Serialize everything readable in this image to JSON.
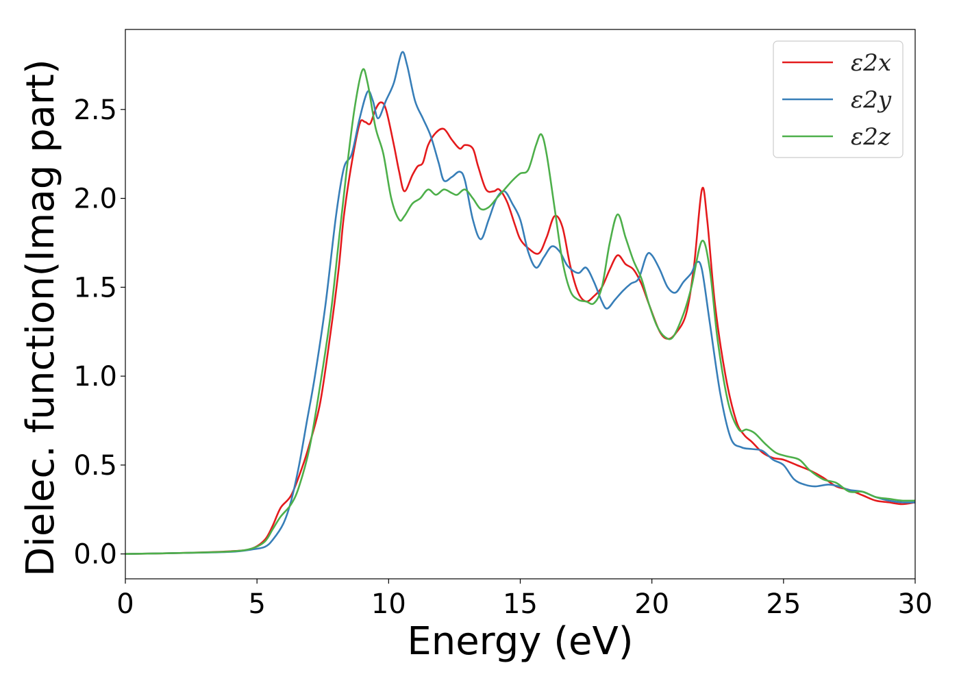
{
  "chart_data": {
    "type": "line",
    "title": "",
    "xlabel": "Energy (eV)",
    "ylabel": "Dielec. function(Imag part)",
    "xlim": [
      0,
      30
    ],
    "ylim": [
      -0.14,
      2.95
    ],
    "xticks": [
      0,
      5,
      10,
      15,
      20,
      25,
      30
    ],
    "yticks": [
      0.0,
      0.5,
      1.0,
      1.5,
      2.0,
      2.5
    ],
    "grid": false,
    "legend_position": "top-right",
    "series": [
      {
        "name": "ε2x",
        "color": "#e41a1c",
        "points": [
          [
            0,
            0
          ],
          [
            2,
            0.005
          ],
          [
            4,
            0.015
          ],
          [
            4.8,
            0.03
          ],
          [
            5.3,
            0.08
          ],
          [
            5.6,
            0.16
          ],
          [
            5.9,
            0.26
          ],
          [
            6.3,
            0.33
          ],
          [
            6.7,
            0.48
          ],
          [
            7.0,
            0.62
          ],
          [
            7.4,
            0.85
          ],
          [
            7.8,
            1.25
          ],
          [
            8.1,
            1.6
          ],
          [
            8.3,
            1.9
          ],
          [
            8.6,
            2.2
          ],
          [
            8.9,
            2.42
          ],
          [
            9.1,
            2.43
          ],
          [
            9.3,
            2.42
          ],
          [
            9.5,
            2.5
          ],
          [
            9.7,
            2.54
          ],
          [
            9.9,
            2.5
          ],
          [
            10.2,
            2.3
          ],
          [
            10.4,
            2.15
          ],
          [
            10.6,
            2.04
          ],
          [
            10.9,
            2.13
          ],
          [
            11.1,
            2.18
          ],
          [
            11.3,
            2.2
          ],
          [
            11.5,
            2.3
          ],
          [
            11.8,
            2.37
          ],
          [
            12.1,
            2.39
          ],
          [
            12.4,
            2.33
          ],
          [
            12.7,
            2.28
          ],
          [
            12.9,
            2.3
          ],
          [
            13.2,
            2.28
          ],
          [
            13.4,
            2.18
          ],
          [
            13.7,
            2.05
          ],
          [
            14.0,
            2.04
          ],
          [
            14.2,
            2.05
          ],
          [
            14.5,
            1.98
          ],
          [
            14.8,
            1.85
          ],
          [
            15.0,
            1.77
          ],
          [
            15.3,
            1.72
          ],
          [
            15.7,
            1.69
          ],
          [
            16.0,
            1.78
          ],
          [
            16.3,
            1.9
          ],
          [
            16.6,
            1.84
          ],
          [
            16.9,
            1.62
          ],
          [
            17.2,
            1.47
          ],
          [
            17.5,
            1.42
          ],
          [
            17.8,
            1.45
          ],
          [
            18.1,
            1.5
          ],
          [
            18.4,
            1.6
          ],
          [
            18.7,
            1.68
          ],
          [
            19.0,
            1.63
          ],
          [
            19.3,
            1.6
          ],
          [
            19.6,
            1.52
          ],
          [
            19.9,
            1.4
          ],
          [
            20.3,
            1.25
          ],
          [
            20.6,
            1.21
          ],
          [
            20.9,
            1.24
          ],
          [
            21.3,
            1.35
          ],
          [
            21.6,
            1.62
          ],
          [
            21.9,
            2.05
          ],
          [
            22.1,
            1.88
          ],
          [
            22.4,
            1.4
          ],
          [
            22.8,
            1.0
          ],
          [
            23.2,
            0.75
          ],
          [
            23.5,
            0.67
          ],
          [
            23.8,
            0.63
          ],
          [
            24.2,
            0.57
          ],
          [
            24.6,
            0.54
          ],
          [
            25.0,
            0.53
          ],
          [
            25.5,
            0.5
          ],
          [
            26.0,
            0.47
          ],
          [
            26.5,
            0.43
          ],
          [
            27.0,
            0.38
          ],
          [
            27.5,
            0.36
          ],
          [
            28.0,
            0.33
          ],
          [
            28.5,
            0.3
          ],
          [
            29.0,
            0.29
          ],
          [
            29.5,
            0.28
          ],
          [
            30,
            0.29
          ]
        ]
      },
      {
        "name": "ε2y",
        "color": "#377eb8",
        "points": [
          [
            0,
            0
          ],
          [
            2,
            0.005
          ],
          [
            4,
            0.012
          ],
          [
            4.8,
            0.025
          ],
          [
            5.3,
            0.04
          ],
          [
            5.6,
            0.08
          ],
          [
            6.0,
            0.17
          ],
          [
            6.3,
            0.3
          ],
          [
            6.6,
            0.5
          ],
          [
            6.9,
            0.75
          ],
          [
            7.2,
            1.0
          ],
          [
            7.6,
            1.4
          ],
          [
            8.0,
            1.9
          ],
          [
            8.3,
            2.17
          ],
          [
            8.6,
            2.25
          ],
          [
            8.9,
            2.45
          ],
          [
            9.2,
            2.6
          ],
          [
            9.4,
            2.55
          ],
          [
            9.6,
            2.45
          ],
          [
            9.9,
            2.55
          ],
          [
            10.2,
            2.65
          ],
          [
            10.5,
            2.82
          ],
          [
            10.7,
            2.75
          ],
          [
            11.0,
            2.55
          ],
          [
            11.3,
            2.45
          ],
          [
            11.6,
            2.35
          ],
          [
            11.9,
            2.2
          ],
          [
            12.1,
            2.1
          ],
          [
            12.4,
            2.12
          ],
          [
            12.7,
            2.15
          ],
          [
            12.9,
            2.1
          ],
          [
            13.2,
            1.88
          ],
          [
            13.5,
            1.77
          ],
          [
            13.8,
            1.88
          ],
          [
            14.1,
            2.0
          ],
          [
            14.4,
            2.04
          ],
          [
            14.7,
            1.97
          ],
          [
            15.0,
            1.88
          ],
          [
            15.3,
            1.7
          ],
          [
            15.6,
            1.61
          ],
          [
            15.9,
            1.67
          ],
          [
            16.2,
            1.73
          ],
          [
            16.5,
            1.7
          ],
          [
            16.8,
            1.62
          ],
          [
            17.2,
            1.58
          ],
          [
            17.5,
            1.61
          ],
          [
            17.8,
            1.53
          ],
          [
            18.1,
            1.42
          ],
          [
            18.3,
            1.38
          ],
          [
            18.6,
            1.43
          ],
          [
            18.9,
            1.48
          ],
          [
            19.2,
            1.52
          ],
          [
            19.5,
            1.55
          ],
          [
            19.8,
            1.68
          ],
          [
            20.0,
            1.68
          ],
          [
            20.3,
            1.6
          ],
          [
            20.6,
            1.5
          ],
          [
            20.9,
            1.47
          ],
          [
            21.2,
            1.53
          ],
          [
            21.5,
            1.58
          ],
          [
            21.7,
            1.64
          ],
          [
            21.9,
            1.6
          ],
          [
            22.2,
            1.3
          ],
          [
            22.6,
            0.9
          ],
          [
            23.0,
            0.65
          ],
          [
            23.4,
            0.6
          ],
          [
            23.8,
            0.59
          ],
          [
            24.2,
            0.58
          ],
          [
            24.6,
            0.53
          ],
          [
            25.0,
            0.5
          ],
          [
            25.4,
            0.42
          ],
          [
            25.8,
            0.39
          ],
          [
            26.2,
            0.38
          ],
          [
            26.7,
            0.39
          ],
          [
            27.1,
            0.38
          ],
          [
            27.5,
            0.36
          ],
          [
            28.0,
            0.35
          ],
          [
            28.5,
            0.32
          ],
          [
            29.0,
            0.3
          ],
          [
            29.5,
            0.29
          ],
          [
            30,
            0.29
          ]
        ]
      },
      {
        "name": "ε2z",
        "color": "#4daf4a",
        "points": [
          [
            0,
            0
          ],
          [
            2,
            0.005
          ],
          [
            4,
            0.014
          ],
          [
            4.8,
            0.03
          ],
          [
            5.3,
            0.07
          ],
          [
            5.6,
            0.14
          ],
          [
            5.9,
            0.21
          ],
          [
            6.3,
            0.28
          ],
          [
            6.6,
            0.38
          ],
          [
            7.0,
            0.6
          ],
          [
            7.4,
            0.95
          ],
          [
            7.8,
            1.35
          ],
          [
            8.1,
            1.75
          ],
          [
            8.4,
            2.15
          ],
          [
            8.7,
            2.5
          ],
          [
            9.0,
            2.72
          ],
          [
            9.2,
            2.65
          ],
          [
            9.5,
            2.4
          ],
          [
            9.8,
            2.25
          ],
          [
            10.1,
            2.0
          ],
          [
            10.4,
            1.88
          ],
          [
            10.6,
            1.9
          ],
          [
            10.9,
            1.97
          ],
          [
            11.2,
            2.0
          ],
          [
            11.5,
            2.05
          ],
          [
            11.8,
            2.02
          ],
          [
            12.1,
            2.05
          ],
          [
            12.4,
            2.03
          ],
          [
            12.6,
            2.02
          ],
          [
            12.9,
            2.05
          ],
          [
            13.2,
            2.0
          ],
          [
            13.5,
            1.94
          ],
          [
            13.8,
            1.95
          ],
          [
            14.1,
            2.0
          ],
          [
            14.4,
            2.05
          ],
          [
            14.7,
            2.1
          ],
          [
            15.0,
            2.14
          ],
          [
            15.3,
            2.16
          ],
          [
            15.6,
            2.3
          ],
          [
            15.8,
            2.36
          ],
          [
            16.0,
            2.25
          ],
          [
            16.3,
            1.95
          ],
          [
            16.6,
            1.65
          ],
          [
            16.9,
            1.48
          ],
          [
            17.2,
            1.43
          ],
          [
            17.5,
            1.42
          ],
          [
            17.8,
            1.41
          ],
          [
            18.1,
            1.5
          ],
          [
            18.4,
            1.75
          ],
          [
            18.7,
            1.91
          ],
          [
            19.0,
            1.78
          ],
          [
            19.3,
            1.65
          ],
          [
            19.6,
            1.55
          ],
          [
            19.9,
            1.4
          ],
          [
            20.2,
            1.28
          ],
          [
            20.5,
            1.22
          ],
          [
            20.8,
            1.22
          ],
          [
            21.2,
            1.35
          ],
          [
            21.5,
            1.5
          ],
          [
            21.9,
            1.76
          ],
          [
            22.2,
            1.6
          ],
          [
            22.5,
            1.2
          ],
          [
            22.9,
            0.85
          ],
          [
            23.3,
            0.7
          ],
          [
            23.6,
            0.7
          ],
          [
            23.9,
            0.68
          ],
          [
            24.3,
            0.62
          ],
          [
            24.7,
            0.57
          ],
          [
            25.1,
            0.55
          ],
          [
            25.6,
            0.53
          ],
          [
            26.0,
            0.47
          ],
          [
            26.5,
            0.42
          ],
          [
            27.0,
            0.4
          ],
          [
            27.5,
            0.35
          ],
          [
            28.0,
            0.35
          ],
          [
            28.5,
            0.32
          ],
          [
            29.0,
            0.31
          ],
          [
            29.5,
            0.3
          ],
          [
            30,
            0.3
          ]
        ]
      }
    ]
  }
}
